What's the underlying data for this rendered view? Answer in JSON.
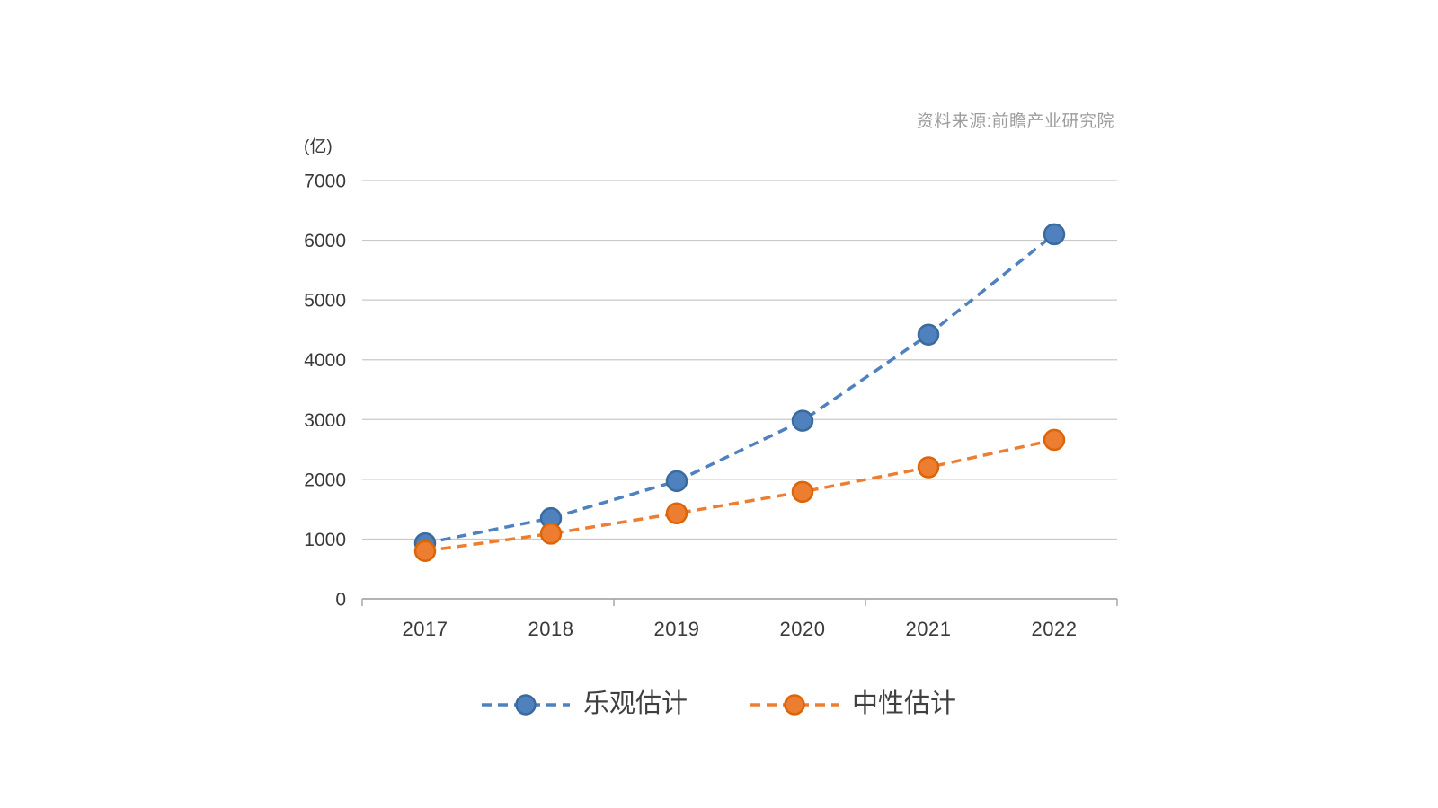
{
  "source_note": "资料来源:前瞻产业研究院",
  "chart_data": {
    "type": "line",
    "unit_label": "(亿)",
    "categories": [
      "2017",
      "2018",
      "2019",
      "2020",
      "2021",
      "2022"
    ],
    "series": [
      {
        "name": "乐观估计",
        "color": "#4E81BD",
        "marker_border": "#3A6A9E",
        "line_style": "dashed",
        "values": [
          930,
          1350,
          1970,
          2980,
          4420,
          6100
        ]
      },
      {
        "name": "中性估计",
        "color": "#ED7D31",
        "marker_border": "#DC6508",
        "line_style": "dashed",
        "values": [
          800,
          1090,
          1430,
          1790,
          2200,
          2660
        ]
      }
    ],
    "ylim": [
      0,
      7000
    ],
    "ytick_step": 1000,
    "xtick_every": 2,
    "grid": "horizontal",
    "grid_color": "#C9C9C9",
    "axis_color": "#A8A8A8",
    "legend_position": "bottom"
  }
}
